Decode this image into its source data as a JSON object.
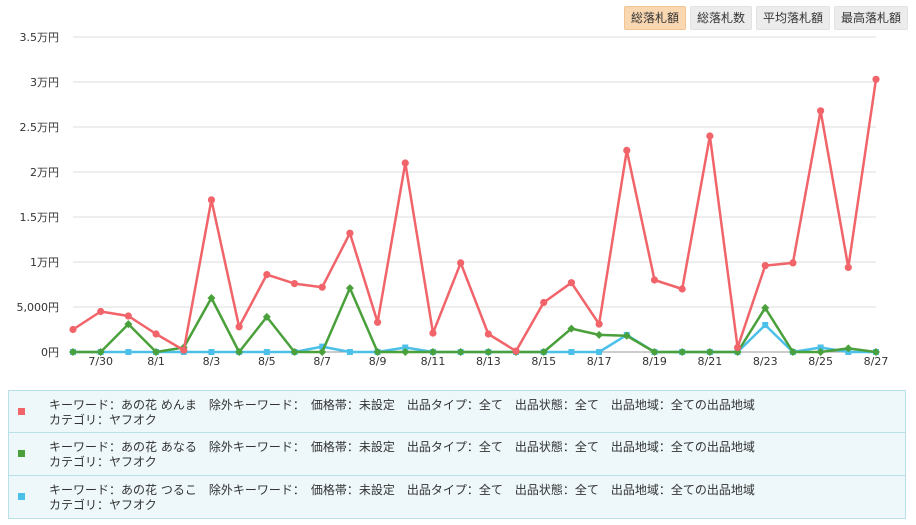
{
  "tabs": [
    {
      "label": "総落札額",
      "active": true
    },
    {
      "label": "総落札数",
      "active": false
    },
    {
      "label": "平均落札額",
      "active": false
    },
    {
      "label": "最高落札額",
      "active": false
    }
  ],
  "chart_data": {
    "type": "line",
    "y_ticks": [
      "0円",
      "5,000円",
      "1万円",
      "1.5万円",
      "2万円",
      "2.5万円",
      "3万円",
      "3.5万円"
    ],
    "ylim": [
      0,
      35000
    ],
    "grid": true,
    "categories": [
      "7/29",
      "7/30",
      "7/31",
      "8/1",
      "8/2",
      "8/3",
      "8/4",
      "8/5",
      "8/6",
      "8/7",
      "8/8",
      "8/9",
      "8/10",
      "8/11",
      "8/12",
      "8/13",
      "8/14",
      "8/15",
      "8/16",
      "8/17",
      "8/18",
      "8/19",
      "8/20",
      "8/21",
      "8/22",
      "8/23",
      "8/24",
      "8/25",
      "8/26",
      "8/27"
    ],
    "x_tick_labels": [
      "7/30",
      "8/1",
      "8/3",
      "8/5",
      "8/7",
      "8/9",
      "8/11",
      "8/13",
      "8/15",
      "8/17",
      "8/19",
      "8/21",
      "8/23",
      "8/25",
      "8/27"
    ],
    "series": [
      {
        "color": "#f0646a",
        "marker": "circle",
        "values": [
          2500,
          4500,
          4000,
          2000,
          200,
          16900,
          2800,
          8600,
          7600,
          7200,
          13200,
          3300,
          21000,
          2100,
          9900,
          2000,
          100,
          5500,
          7700,
          3100,
          22400,
          8000,
          7000,
          24000,
          500,
          9600,
          9900,
          26800,
          9400,
          30300
        ]
      },
      {
        "color": "#4aa03a",
        "marker": "diamond",
        "values": [
          0,
          0,
          3100,
          0,
          500,
          6000,
          0,
          3900,
          0,
          0,
          7100,
          0,
          0,
          0,
          0,
          0,
          0,
          0,
          2600,
          1900,
          1800,
          0,
          0,
          0,
          0,
          4900,
          0,
          0,
          400,
          0
        ]
      },
      {
        "color": "#4cc0e8",
        "marker": "square",
        "values": [
          0,
          0,
          0,
          0,
          0,
          0,
          0,
          0,
          0,
          600,
          0,
          0,
          500,
          0,
          0,
          0,
          0,
          0,
          0,
          0,
          1900,
          0,
          0,
          0,
          0,
          3000,
          0,
          500,
          0,
          0
        ]
      }
    ]
  },
  "legend": [
    {
      "color": "#f0646a",
      "line1": "キーワード：あの花 めんま　除外キーワード：　価格帯：未設定　出品タイプ：全て　出品状態：全て　出品地域：全ての出品地域",
      "line2": "カテゴリ：ヤフオク"
    },
    {
      "color": "#4aa03a",
      "line1": "キーワード：あの花 あなる　除外キーワード：　価格帯：未設定　出品タイプ：全て　出品状態：全て　出品地域：全ての出品地域",
      "line2": "カテゴリ：ヤフオク"
    },
    {
      "color": "#4cc0e8",
      "line1": "キーワード：あの花 つるこ　除外キーワード：　価格帯：未設定　出品タイプ：全て　出品状態：全て　出品地域：全ての出品地域",
      "line2": "カテゴリ：ヤフオク"
    }
  ]
}
